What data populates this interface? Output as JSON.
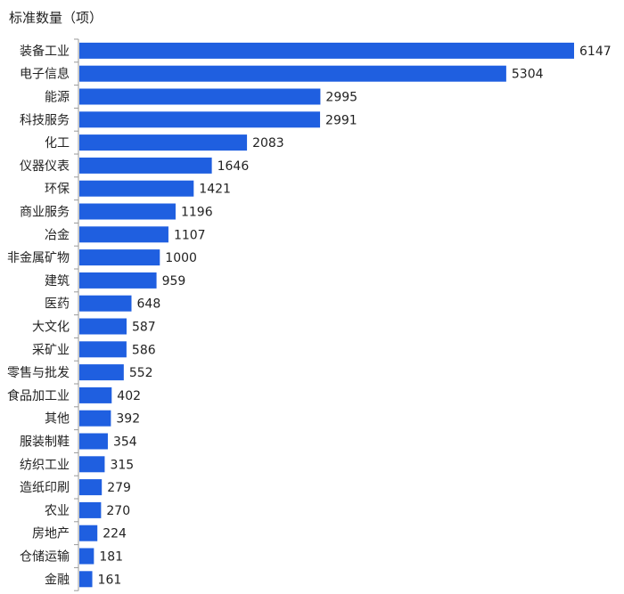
{
  "chart_data": {
    "type": "bar",
    "orientation": "horizontal",
    "ylabel": "标准数量（项）",
    "categories": [
      "装备工业",
      "电子信息",
      "能源",
      "科技服务",
      "化工",
      "仪器仪表",
      "环保",
      "商业服务",
      "冶金",
      "非金属矿物",
      "建筑",
      "医药",
      "大文化",
      "采矿业",
      "零售与批发",
      "食品加工业",
      "其他",
      "服装制鞋",
      "纺织工业",
      "造纸印刷",
      "农业",
      "房地产",
      "仓储运输",
      "金融"
    ],
    "values": [
      6147,
      5304,
      2995,
      2991,
      2083,
      1646,
      1421,
      1196,
      1107,
      1000,
      959,
      648,
      587,
      586,
      552,
      402,
      392,
      354,
      315,
      279,
      270,
      224,
      181,
      161
    ],
    "xlim": [
      0,
      6147
    ],
    "bar_color": "#1f5fe0",
    "grid": false,
    "legend": "none"
  }
}
